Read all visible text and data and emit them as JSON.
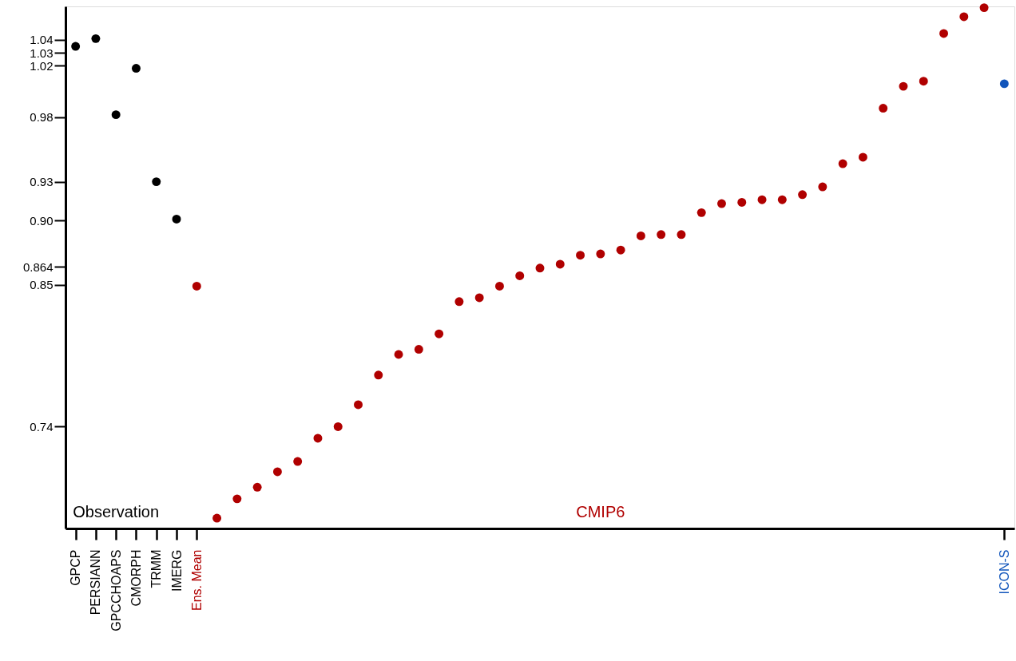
{
  "chart_data": {
    "type": "scatter",
    "categories": [
      "GPCP",
      "PERSIANN",
      "GPCCHOAPS",
      "CMORPH",
      "TRMM",
      "IMERG",
      "Ens. Mean",
      null,
      null,
      null,
      null,
      null,
      null,
      null,
      null,
      null,
      null,
      null,
      null,
      null,
      null,
      null,
      null,
      null,
      null,
      null,
      null,
      null,
      null,
      null,
      null,
      null,
      null,
      null,
      null,
      null,
      null,
      null,
      null,
      null,
      null,
      null,
      null,
      null,
      null,
      null,
      "ICON-S"
    ],
    "series": [
      {
        "name": "Observation",
        "color": "#000000",
        "values": [
          1.035,
          1.041,
          0.982,
          1.018,
          0.93,
          0.901,
          null,
          null,
          null,
          null,
          null,
          null,
          null,
          null,
          null,
          null,
          null,
          null,
          null,
          null,
          null,
          null,
          null,
          null,
          null,
          null,
          null,
          null,
          null,
          null,
          null,
          null,
          null,
          null,
          null,
          null,
          null,
          null,
          null,
          null,
          null,
          null,
          null,
          null,
          null,
          null,
          null
        ]
      },
      {
        "color": "#b00000",
        "values": [
          null,
          null,
          null,
          null,
          null,
          null,
          0.849,
          null,
          null,
          null,
          null,
          null,
          null,
          null,
          null,
          null,
          null,
          null,
          null,
          null,
          null,
          null,
          null,
          null,
          null,
          null,
          null,
          null,
          null,
          null,
          null,
          null,
          null,
          null,
          null,
          null,
          null,
          null,
          null,
          null,
          null,
          null,
          null,
          null,
          null,
          null,
          null
        ]
      },
      {
        "name": "CMIP6",
        "color": "#b00000",
        "values": [
          null,
          null,
          null,
          null,
          null,
          null,
          null,
          0.669,
          0.684,
          0.693,
          0.705,
          0.713,
          0.731,
          0.74,
          0.757,
          0.78,
          0.796,
          0.8,
          0.812,
          0.837,
          0.84,
          0.849,
          0.857,
          0.863,
          0.866,
          0.873,
          0.874,
          0.877,
          0.888,
          0.889,
          0.889,
          0.906,
          0.913,
          0.914,
          0.916,
          0.916,
          0.92,
          0.926,
          0.944,
          0.949,
          0.987,
          1.004,
          1.008,
          1.045,
          1.058,
          1.065,
          null
        ]
      },
      {
        "color": "#1155bb",
        "values": [
          null,
          null,
          null,
          null,
          null,
          null,
          null,
          null,
          null,
          null,
          null,
          null,
          null,
          null,
          null,
          null,
          null,
          null,
          null,
          null,
          null,
          null,
          null,
          null,
          null,
          null,
          null,
          null,
          null,
          null,
          null,
          null,
          null,
          null,
          null,
          null,
          null,
          null,
          null,
          null,
          null,
          null,
          null,
          null,
          null,
          null,
          1.006
        ]
      }
    ],
    "ylim": [
      0.661,
      1.066
    ],
    "yticks": [
      0.74,
      0.85,
      0.864,
      {
        "value": 0.9,
        "label": "0.90"
      },
      0.93,
      0.98,
      1.02,
      1.03,
      1.04
    ],
    "marker": "circle",
    "grid": false,
    "legend": false
  }
}
